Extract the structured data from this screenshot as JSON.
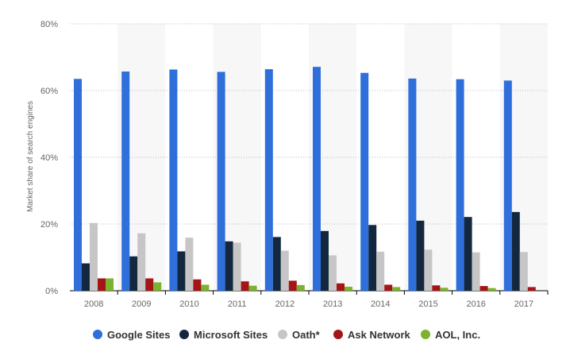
{
  "chart_data": {
    "type": "bar",
    "title": "",
    "xlabel": "",
    "ylabel": "Market share of search engines",
    "ylim": [
      0,
      80
    ],
    "yticks": [
      "0%",
      "20%",
      "40%",
      "60%",
      "80%"
    ],
    "ytick_values": [
      0,
      20,
      40,
      60,
      80
    ],
    "grid": true,
    "legend_position": "bottom",
    "categories": [
      "2008",
      "2009",
      "2010",
      "2011",
      "2012",
      "2013",
      "2014",
      "2015",
      "2016",
      "2017"
    ],
    "series": [
      {
        "name": "Google Sites",
        "color": "#2f6fdc",
        "values": [
          63.5,
          65.7,
          66.3,
          65.6,
          66.4,
          67.1,
          65.3,
          63.6,
          63.4,
          63.0
        ]
      },
      {
        "name": "Microsoft Sites",
        "color": "#13283f",
        "values": [
          8.2,
          10.3,
          11.8,
          14.8,
          16.1,
          17.9,
          19.7,
          21.0,
          22.1,
          23.6
        ]
      },
      {
        "name": "Oath*",
        "color": "#c6c6c6",
        "values": [
          20.3,
          17.2,
          15.9,
          14.4,
          12.0,
          10.6,
          11.7,
          12.3,
          11.5,
          11.6
        ]
      },
      {
        "name": "Ask Network",
        "color": "#a41517",
        "values": [
          3.7,
          3.7,
          3.4,
          2.8,
          3.0,
          2.2,
          1.8,
          1.6,
          1.4,
          1.1
        ]
      },
      {
        "name": "AOL, Inc.",
        "color": "#7ab32e",
        "values": [
          3.7,
          2.5,
          1.8,
          1.5,
          1.7,
          1.2,
          1.1,
          0.9,
          0.8,
          0.0
        ]
      }
    ]
  }
}
